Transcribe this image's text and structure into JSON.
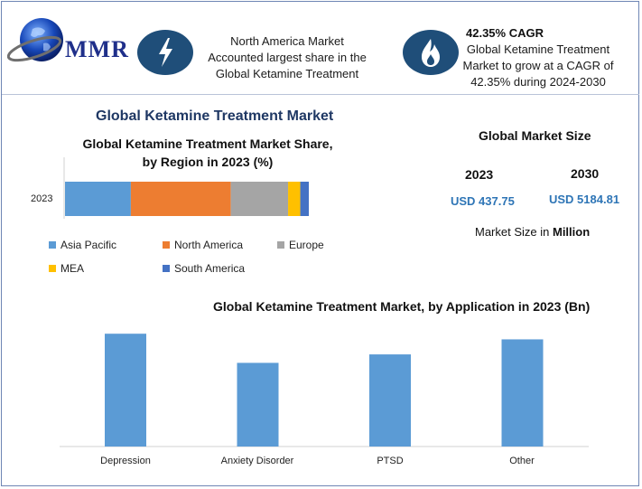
{
  "header": {
    "logo_text": "MMR",
    "highlight_1": [
      "North America Market",
      "Accounted largest share in the",
      "Global Ketamine Treatment"
    ],
    "cagr_title": "42.35% CAGR",
    "highlight_2": [
      "Global Ketamine Treatment",
      "Market to grow at a CAGR of",
      "42.35% during 2024-2030"
    ]
  },
  "main_title": "Global Ketamine Treatment Market",
  "market_size": {
    "title": "Global Market Size",
    "year_1": "2023",
    "year_2": "2030",
    "value_1": "USD 437.75",
    "value_2": "USD 5184.81",
    "unit_prefix": "Market Size in ",
    "unit_bold": "Million"
  },
  "colors": {
    "asia_pacific": "#5b9bd5",
    "north_america": "#ed7d31",
    "europe": "#a5a5a5",
    "mea": "#ffc000",
    "south_america": "#4472c4",
    "bar": "#5b9bd5",
    "icon_bg": "#1f4e79"
  },
  "chart_data": [
    {
      "type": "bar",
      "orientation": "horizontal-stacked",
      "title": "Global Ketamine Treatment Market Share,\nby Region in 2023 (%)",
      "title_lines": [
        "Global Ketamine Treatment Market Share,",
        "by Region in 2023 (%)"
      ],
      "categories": [
        "2023"
      ],
      "series": [
        {
          "name": "Asia Pacific",
          "values": [
            27
          ]
        },
        {
          "name": "North America",
          "values": [
            41
          ]
        },
        {
          "name": "Europe",
          "values": [
            23.5
          ]
        },
        {
          "name": "MEA",
          "values": [
            5
          ]
        },
        {
          "name": "South America",
          "values": [
            3.5
          ]
        }
      ],
      "legend": "bottom"
    },
    {
      "type": "bar",
      "title": "Global Ketamine Treatment Market, by Application  in 2023 (Bn)",
      "categories": [
        "Depression",
        "Anxiety Disorder",
        "PTSD",
        "Other"
      ],
      "values": [
        120,
        89,
        98,
        114
      ],
      "ylim": [
        0,
        125
      ]
    }
  ]
}
